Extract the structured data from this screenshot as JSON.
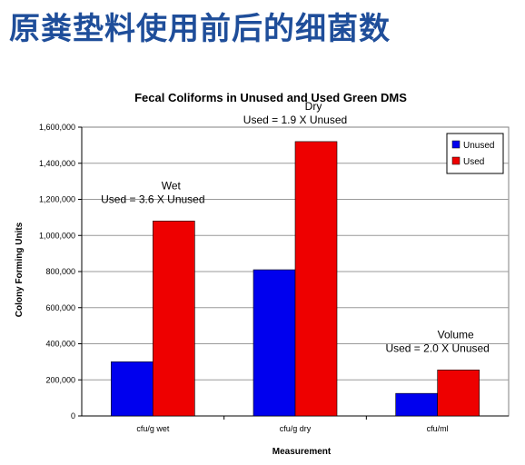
{
  "slide": {
    "title": "原粪垫料使用前后的细菌数"
  },
  "colors": {
    "title": "#1f4e9a",
    "unused": "#0000ee",
    "used": "#ee0000"
  },
  "chart_data": {
    "type": "bar",
    "title": "Fecal Coliforms in Unused and Used Green DMS",
    "xlabel": "Measurement",
    "ylabel": "Colony Forming Units",
    "categories": [
      "cfu/g wet",
      "cfu/g dry",
      "cfu/ml"
    ],
    "series": [
      {
        "name": "Unused",
        "values": [
          300000,
          810000,
          125000
        ]
      },
      {
        "name": "Used",
        "values": [
          1080000,
          1520000,
          255000
        ]
      }
    ],
    "ylim": [
      0,
      1600000
    ],
    "yticks": [
      "0",
      "200,000",
      "400,000",
      "600,000",
      "800,000",
      "1,000,000",
      "1,200,000",
      "1,400,000",
      "1,600,000"
    ],
    "grid": true,
    "legend_position": "top-right",
    "annotations": [
      {
        "title": "Wet",
        "text": "Used = 3.6 X Unused",
        "category": "cfu/g wet"
      },
      {
        "title": "Dry",
        "text": "Used = 1.9 X Unused",
        "category": "cfu/g dry"
      },
      {
        "title": "Volume",
        "text": "Used = 2.0 X Unused",
        "category": "cfu/ml"
      }
    ]
  }
}
